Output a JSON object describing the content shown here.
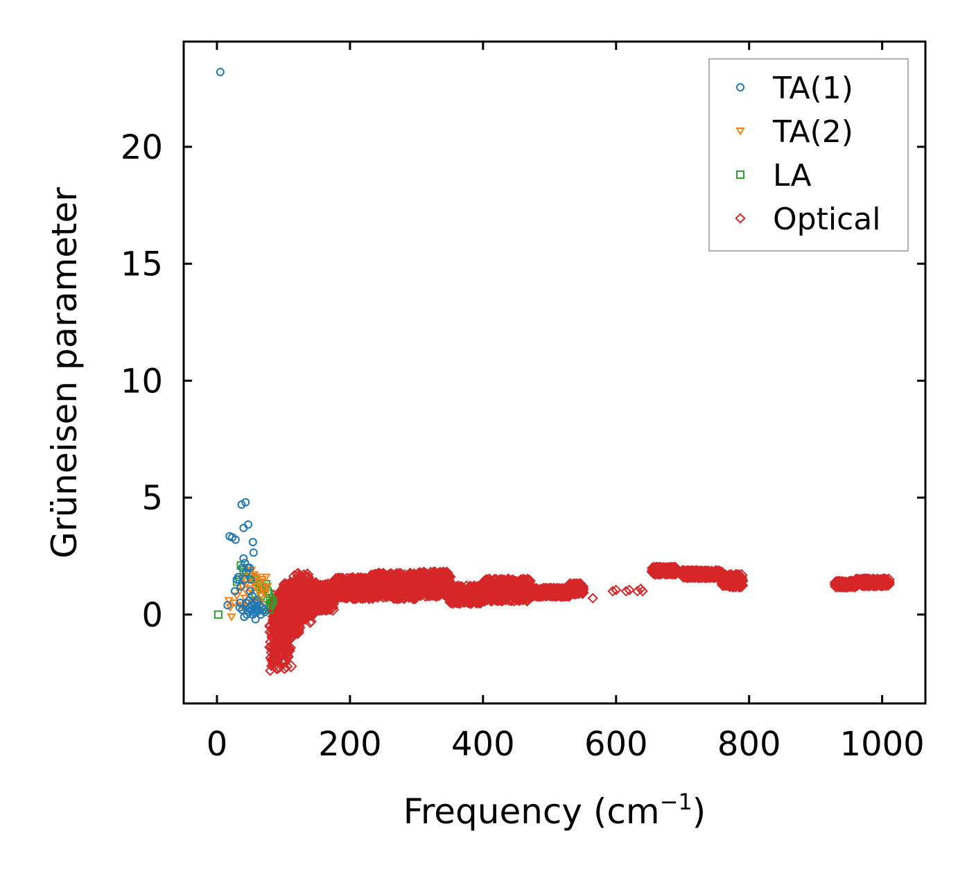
{
  "chart_data": {
    "type": "scatter",
    "title": "",
    "xlabel": "Frequency (cm",
    "xlabel_sup": "−1",
    "xlabel_close": ")",
    "ylabel": "Grüneisen parameter",
    "xlim": [
      -50,
      1065
    ],
    "ylim": [
      -3.8,
      24.5
    ],
    "xticks": [
      0,
      200,
      400,
      600,
      800,
      1000
    ],
    "yticks": [
      0,
      5,
      10,
      15,
      20
    ],
    "xtick_labels": [
      "0",
      "200",
      "400",
      "600",
      "800",
      "1000"
    ],
    "ytick_labels": [
      "0",
      "5",
      "10",
      "15",
      "20"
    ],
    "grid": false,
    "legend_position": "top-right",
    "series": [
      {
        "name": "TA(1)",
        "marker": "circle",
        "color": "#1f77b4",
        "points": [
          [
            5,
            23.2
          ],
          [
            16,
            0.4
          ],
          [
            19,
            3.35
          ],
          [
            23,
            3.3
          ],
          [
            27,
            1.0
          ],
          [
            28,
            3.2
          ],
          [
            30,
            1.5
          ],
          [
            32,
            1.6
          ],
          [
            34,
            0.3
          ],
          [
            35,
            0.5
          ],
          [
            37,
            4.7
          ],
          [
            38,
            0.2
          ],
          [
            40,
            3.7
          ],
          [
            40,
            2.4
          ],
          [
            41,
            -0.1
          ],
          [
            42,
            2.2
          ],
          [
            43,
            4.8
          ],
          [
            44,
            1.8
          ],
          [
            45,
            0.0
          ],
          [
            46,
            2.0
          ],
          [
            47,
            3.85
          ],
          [
            48,
            0.6
          ],
          [
            49,
            2.0
          ],
          [
            50,
            0.3
          ],
          [
            51,
            1.5
          ],
          [
            52,
            0.4
          ],
          [
            53,
            0.8
          ],
          [
            54,
            3.1
          ],
          [
            55,
            2.65
          ],
          [
            56,
            0.1
          ],
          [
            57,
            0.5
          ],
          [
            58,
            -0.2
          ],
          [
            59,
            0.3
          ],
          [
            60,
            0.6
          ],
          [
            62,
            0.2
          ],
          [
            64,
            0.4
          ],
          [
            66,
            0.0
          ],
          [
            68,
            0.3
          ],
          [
            70,
            0.2
          ],
          [
            72,
            0.1
          ],
          [
            44,
            0.5
          ],
          [
            46,
            0.2
          ],
          [
            48,
            0.1
          ],
          [
            52,
            0.2
          ],
          [
            54,
            0.0
          ],
          [
            56,
            0.4
          ],
          [
            58,
            0.2
          ],
          [
            60,
            0.1
          ],
          [
            50,
            1.0
          ],
          [
            36,
            1.2
          ],
          [
            38,
            2.0
          ],
          [
            42,
            1.5
          ]
        ]
      },
      {
        "name": "TA(2)",
        "marker": "triangle-down",
        "color": "#ff7f0e",
        "points": [
          [
            18,
            0.6
          ],
          [
            20,
            0.3
          ],
          [
            22,
            -0.1
          ],
          [
            26,
            0.5
          ],
          [
            30,
            0.8
          ],
          [
            34,
            1.0
          ],
          [
            38,
            1.2
          ],
          [
            40,
            1.6
          ],
          [
            42,
            0.7
          ],
          [
            44,
            1.3
          ],
          [
            46,
            0.9
          ],
          [
            48,
            1.8
          ],
          [
            50,
            1.1
          ],
          [
            52,
            1.9
          ],
          [
            54,
            1.4
          ],
          [
            56,
            1.7
          ],
          [
            58,
            1.2
          ],
          [
            60,
            1.6
          ],
          [
            62,
            1.0
          ],
          [
            64,
            1.4
          ],
          [
            66,
            0.8
          ],
          [
            68,
            1.5
          ],
          [
            70,
            1.1
          ],
          [
            72,
            0.9
          ],
          [
            74,
            1.6
          ],
          [
            76,
            1.2
          ],
          [
            36,
            0.4
          ],
          [
            40,
            0.3
          ],
          [
            45,
            0.5
          ],
          [
            55,
            0.6
          ],
          [
            65,
            0.5
          ]
        ]
      },
      {
        "name": "LA",
        "marker": "square",
        "color": "#2ca02c",
        "points": [
          [
            2,
            0.0
          ],
          [
            30,
            1.4
          ],
          [
            34,
            1.5
          ],
          [
            36,
            2.1
          ],
          [
            40,
            1.9
          ],
          [
            44,
            1.8
          ],
          [
            48,
            1.7
          ],
          [
            52,
            1.6
          ],
          [
            56,
            1.5
          ],
          [
            60,
            1.4
          ],
          [
            64,
            1.3
          ],
          [
            68,
            1.2
          ],
          [
            72,
            1.1
          ],
          [
            74,
            1.3
          ],
          [
            76,
            1.0
          ],
          [
            78,
            0.9
          ],
          [
            80,
            0.7
          ],
          [
            82,
            0.5
          ],
          [
            84,
            0.6
          ],
          [
            70,
            0.4
          ],
          [
            66,
            0.8
          ],
          [
            62,
            0.6
          ],
          [
            58,
            0.9
          ],
          [
            78,
            0.2
          ],
          [
            80,
            0.4
          ]
        ]
      },
      {
        "name": "Optical",
        "marker": "diamond",
        "color": "#d62728",
        "bands": [
          [
            80,
            112,
            -2.3,
            0.5
          ],
          [
            85,
            125,
            -0.8,
            1.1
          ],
          [
            100,
            150,
            0.0,
            1.4
          ],
          [
            115,
            140,
            -0.2,
            1.75
          ],
          [
            130,
            175,
            0.2,
            1.3
          ],
          [
            175,
            230,
            0.7,
            1.55
          ],
          [
            230,
            300,
            0.7,
            1.75
          ],
          [
            300,
            350,
            0.8,
            1.8
          ],
          [
            350,
            400,
            0.5,
            1.2
          ],
          [
            400,
            470,
            0.6,
            1.5
          ],
          [
            470,
            530,
            0.8,
            1.1
          ],
          [
            530,
            550,
            0.9,
            1.3
          ],
          [
            655,
            690,
            1.75,
            2.0
          ],
          [
            700,
            760,
            1.6,
            1.85
          ],
          [
            760,
            790,
            1.2,
            1.7
          ],
          [
            930,
            960,
            1.2,
            1.4
          ],
          [
            960,
            1010,
            1.25,
            1.5
          ]
        ],
        "points": [
          [
            80,
            -2.4
          ],
          [
            82,
            -2.2
          ],
          [
            84,
            -2.0
          ],
          [
            86,
            -1.7
          ],
          [
            88,
            -1.5
          ],
          [
            90,
            -1.2
          ],
          [
            140,
            -0.35
          ],
          [
            142,
            -0.3
          ],
          [
            565,
            0.7
          ],
          [
            595,
            1.0
          ],
          [
            600,
            1.05
          ],
          [
            615,
            1.0
          ],
          [
            620,
            1.05
          ],
          [
            632,
            1.0
          ],
          [
            637,
            1.1
          ],
          [
            640,
            1.0
          ],
          [
            700,
            1.9
          ],
          [
            785,
            1.25
          ]
        ]
      }
    ]
  }
}
